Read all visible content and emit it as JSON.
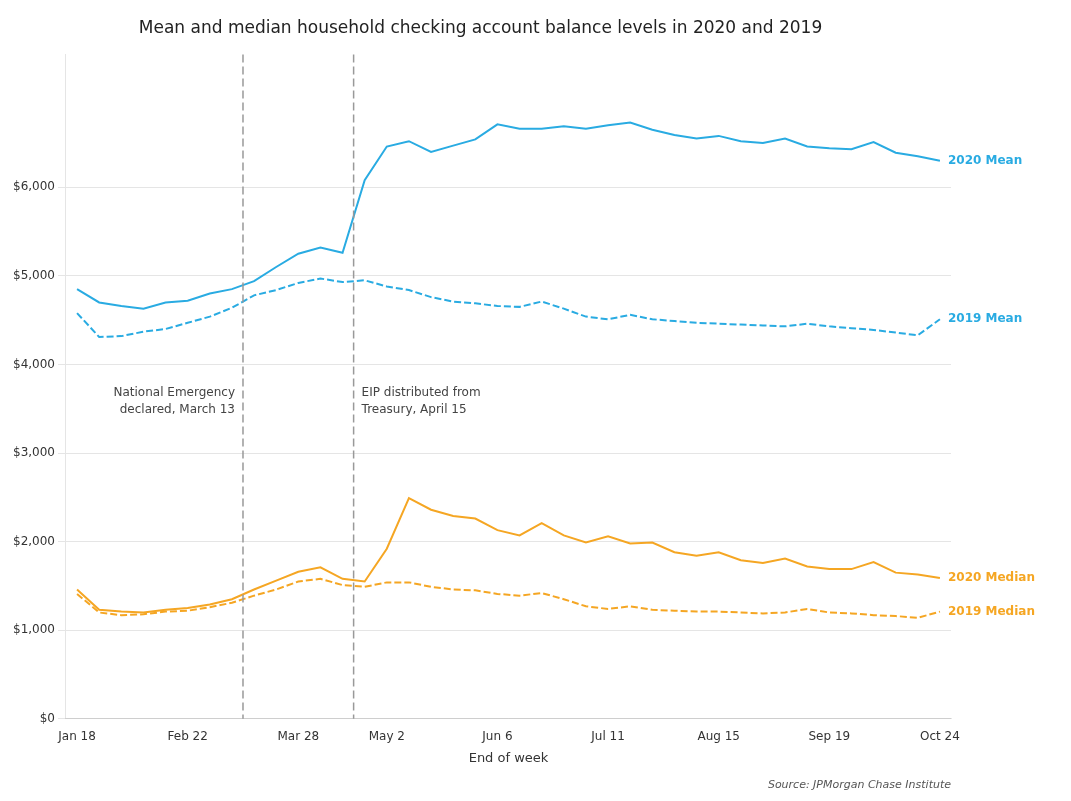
{
  "chart_data": {
    "type": "line",
    "title": "Mean and median household checking account balance levels in 2020 and 2019",
    "xlabel": "End of week",
    "source": "Source: JPMorgan Chase Institute",
    "categories": [
      "Jan 18",
      null,
      null,
      null,
      null,
      "Feb 22",
      null,
      null,
      null,
      null,
      "Mar 28",
      null,
      null,
      null,
      "May 2",
      null,
      null,
      null,
      null,
      "Jun 6",
      null,
      null,
      null,
      null,
      "Jul 11",
      null,
      null,
      null,
      null,
      "Aug 15",
      null,
      null,
      null,
      null,
      "Sep 19",
      null,
      null,
      null,
      null,
      "Oct 24"
    ],
    "series": [
      {
        "name": "2020 Mean",
        "color": "#29ABE2",
        "line_style": "solid",
        "values": [
          4850,
          4700,
          4660,
          4630,
          4700,
          4720,
          4800,
          4850,
          4940,
          5100,
          5250,
          5320,
          5260,
          6080,
          6460,
          6520,
          6400,
          6470,
          6540,
          6710,
          6660,
          6660,
          6690,
          6660,
          6700,
          6730,
          6650,
          6590,
          6550,
          6580,
          6520,
          6500,
          6550,
          6460,
          6440,
          6430,
          6510,
          6390,
          6350,
          6300
        ]
      },
      {
        "name": "2019 Mean",
        "color": "#29ABE2",
        "line_style": "dashed",
        "values": [
          4580,
          4310,
          4320,
          4370,
          4400,
          4470,
          4540,
          4640,
          4780,
          4840,
          4920,
          4970,
          4930,
          4950,
          4880,
          4840,
          4760,
          4710,
          4690,
          4660,
          4650,
          4710,
          4630,
          4540,
          4510,
          4560,
          4510,
          4490,
          4470,
          4460,
          4450,
          4440,
          4430,
          4460,
          4430,
          4410,
          4390,
          4360,
          4330,
          4510
        ]
      },
      {
        "name": "2020 Median",
        "color": "#F5A623",
        "line_style": "solid",
        "values": [
          1460,
          1230,
          1210,
          1200,
          1230,
          1250,
          1290,
          1350,
          1460,
          1560,
          1660,
          1710,
          1580,
          1550,
          1920,
          2490,
          2360,
          2290,
          2260,
          2130,
          2070,
          2210,
          2070,
          1990,
          2060,
          1980,
          1990,
          1880,
          1840,
          1880,
          1790,
          1760,
          1810,
          1720,
          1690,
          1690,
          1770,
          1650,
          1630,
          1590
        ]
      },
      {
        "name": "2019 Median",
        "color": "#F5A623",
        "line_style": "dashed",
        "values": [
          1410,
          1200,
          1170,
          1180,
          1210,
          1220,
          1260,
          1310,
          1390,
          1460,
          1550,
          1580,
          1510,
          1490,
          1540,
          1540,
          1490,
          1460,
          1450,
          1410,
          1390,
          1420,
          1350,
          1270,
          1240,
          1270,
          1230,
          1220,
          1210,
          1210,
          1200,
          1190,
          1200,
          1240,
          1200,
          1190,
          1170,
          1160,
          1140,
          1210
        ]
      }
    ],
    "annotations": [
      {
        "x": 7.5,
        "line_style": "dashed",
        "text": [
          "National Emergency",
          "declared, March 13"
        ]
      },
      {
        "x": 12.5,
        "line_style": "dashed",
        "text": [
          "EIP distributed from",
          "Treasury, April 15"
        ]
      }
    ],
    "ylim": [
      0,
      7500
    ],
    "yticks": [
      {
        "value": 0,
        "label": "$0"
      },
      {
        "value": 1000,
        "label": "$1,000"
      },
      {
        "value": 2000,
        "label": "$2,000"
      },
      {
        "value": 3000,
        "label": "$3,000"
      },
      {
        "value": 4000,
        "label": "$4,000"
      },
      {
        "value": 5000,
        "label": "$5,000"
      },
      {
        "value": 6000,
        "label": "$6,000"
      }
    ],
    "grid": "y",
    "legend": false
  }
}
